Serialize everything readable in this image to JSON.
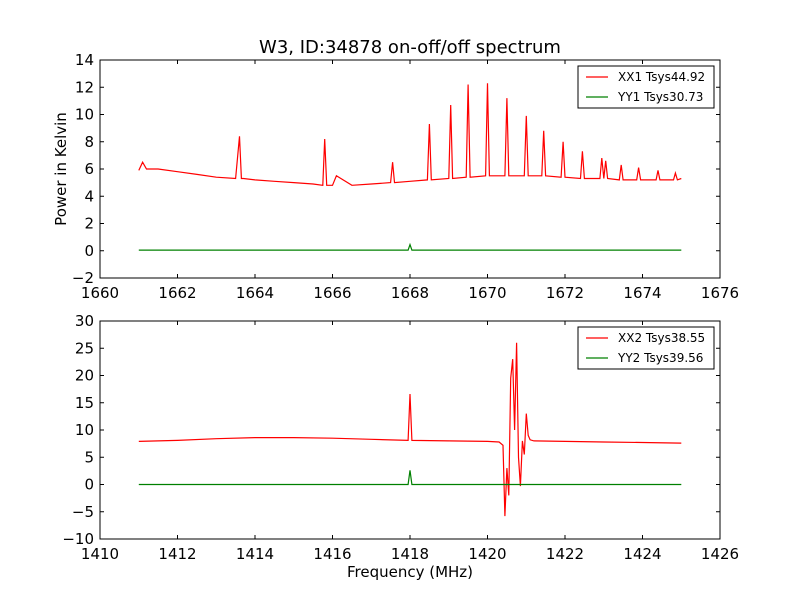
{
  "figure": {
    "title": "W3, ID:34878 on-off/off spectrum"
  },
  "chart_data": [
    {
      "type": "line",
      "title": "W3, ID:34878 on-off/off spectrum",
      "xlabel": "",
      "ylabel": "Power in Kelvin",
      "xlim": [
        1660,
        1676
      ],
      "ylim": [
        -2,
        14
      ],
      "xticks": [
        "1660",
        "1662",
        "1664",
        "1666",
        "1668",
        "1670",
        "1672",
        "1674",
        "1676"
      ],
      "yticks": [
        "−2",
        "0",
        "2",
        "4",
        "6",
        "8",
        "10",
        "12",
        "14"
      ],
      "grid": false,
      "legend_position": "top-right",
      "series": [
        {
          "name": "XX1 Tsys44.92",
          "color": "#ff0000",
          "x": [
            1661.0,
            1661.1,
            1661.2,
            1661.5,
            1662.0,
            1662.5,
            1663.0,
            1663.5,
            1663.6,
            1663.65,
            1663.7,
            1664.0,
            1664.5,
            1665.0,
            1665.5,
            1665.75,
            1665.8,
            1665.85,
            1666.0,
            1666.1,
            1666.5,
            1667.0,
            1667.5,
            1667.55,
            1667.6,
            1668.0,
            1668.45,
            1668.5,
            1668.55,
            1669.0,
            1669.05,
            1669.1,
            1669.45,
            1669.5,
            1669.55,
            1669.95,
            1670.0,
            1670.05,
            1670.45,
            1670.5,
            1670.55,
            1670.95,
            1671.0,
            1671.05,
            1671.4,
            1671.45,
            1671.5,
            1671.9,
            1671.95,
            1672.0,
            1672.4,
            1672.45,
            1672.5,
            1672.9,
            1672.95,
            1673.0,
            1673.05,
            1673.1,
            1673.4,
            1673.45,
            1673.5,
            1673.85,
            1673.9,
            1673.95,
            1674.35,
            1674.4,
            1674.45,
            1674.8,
            1674.85,
            1674.9,
            1675.0
          ],
          "y": [
            5.9,
            6.5,
            6.0,
            6.0,
            5.8,
            5.6,
            5.4,
            5.3,
            8.4,
            5.3,
            5.3,
            5.2,
            5.1,
            5.0,
            4.9,
            4.8,
            8.2,
            4.8,
            4.8,
            5.5,
            4.8,
            4.9,
            5.0,
            6.5,
            5.0,
            5.1,
            5.2,
            9.3,
            5.2,
            5.3,
            10.7,
            5.3,
            5.4,
            12.2,
            5.4,
            5.5,
            12.3,
            5.5,
            5.5,
            11.2,
            5.5,
            5.5,
            9.9,
            5.5,
            5.5,
            8.8,
            5.5,
            5.4,
            8.0,
            5.4,
            5.3,
            7.3,
            5.3,
            5.3,
            6.8,
            5.3,
            6.6,
            5.3,
            5.2,
            6.3,
            5.2,
            5.2,
            6.1,
            5.2,
            5.2,
            5.9,
            5.2,
            5.2,
            5.7,
            5.2,
            5.3
          ]
        },
        {
          "name": "YY1 Tsys30.73",
          "color": "#008000",
          "x": [
            1661.0,
            1662.0,
            1663.0,
            1664.0,
            1665.0,
            1666.0,
            1667.0,
            1667.95,
            1668.0,
            1668.05,
            1669.0,
            1670.0,
            1671.0,
            1672.0,
            1673.0,
            1674.0,
            1675.0
          ],
          "y": [
            0.05,
            0.05,
            0.05,
            0.05,
            0.05,
            0.05,
            0.05,
            0.05,
            0.45,
            0.05,
            0.05,
            0.05,
            0.05,
            0.05,
            0.05,
            0.05,
            0.05
          ]
        }
      ]
    },
    {
      "type": "line",
      "title": "",
      "xlabel": "Frequency (MHz)",
      "ylabel": "",
      "xlim": [
        1410,
        1426
      ],
      "ylim": [
        -10,
        30
      ],
      "xticks": [
        "1410",
        "1412",
        "1414",
        "1416",
        "1418",
        "1420",
        "1422",
        "1424",
        "1426"
      ],
      "yticks": [
        "−10",
        "−5",
        "0",
        "5",
        "10",
        "15",
        "20",
        "25",
        "30"
      ],
      "grid": false,
      "legend_position": "top-right",
      "series": [
        {
          "name": "XX2 Tsys38.55",
          "color": "#ff0000",
          "x": [
            1411.0,
            1412.0,
            1413.0,
            1414.0,
            1415.0,
            1416.0,
            1417.0,
            1417.95,
            1418.0,
            1418.05,
            1419.0,
            1420.0,
            1420.3,
            1420.4,
            1420.45,
            1420.5,
            1420.55,
            1420.6,
            1420.65,
            1420.7,
            1420.75,
            1420.8,
            1420.85,
            1420.9,
            1420.95,
            1421.0,
            1421.05,
            1421.1,
            1421.2,
            1422.0,
            1423.0,
            1424.0,
            1425.0
          ],
          "y": [
            7.9,
            8.1,
            8.4,
            8.6,
            8.6,
            8.5,
            8.3,
            8.1,
            16.6,
            8.1,
            8.0,
            7.9,
            7.8,
            7.2,
            -5.8,
            3.0,
            -2.0,
            19.5,
            23.0,
            10.0,
            26.0,
            5.0,
            -0.3,
            8.0,
            5.5,
            13.0,
            9.0,
            8.2,
            8.0,
            7.9,
            7.8,
            7.7,
            7.6
          ]
        },
        {
          "name": "YY2 Tsys39.56",
          "color": "#008000",
          "x": [
            1411.0,
            1412.0,
            1413.0,
            1414.0,
            1415.0,
            1416.0,
            1417.0,
            1417.95,
            1418.0,
            1418.05,
            1419.0,
            1420.0,
            1421.0,
            1422.0,
            1423.0,
            1424.0,
            1425.0
          ],
          "y": [
            0.0,
            0.0,
            0.0,
            0.0,
            0.0,
            0.0,
            0.0,
            0.0,
            2.6,
            0.0,
            0.0,
            0.0,
            0.0,
            0.0,
            0.0,
            0.0,
            0.0
          ]
        }
      ]
    }
  ]
}
